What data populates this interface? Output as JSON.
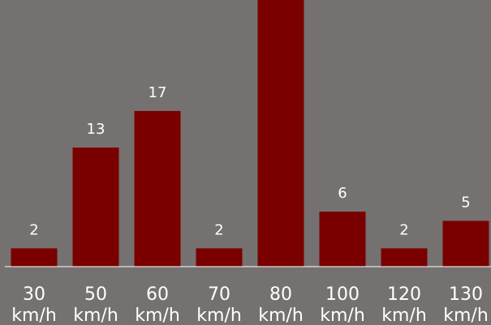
{
  "chart_data": {
    "type": "bar",
    "categories": [
      "30 km/h",
      "50 km/h",
      "60 km/h",
      "70 km/h",
      "80 km/h",
      "100 km/h",
      "120 km/h",
      "130 km/h"
    ],
    "category_lines": [
      [
        "30",
        "km/h"
      ],
      [
        "50",
        "km/h"
      ],
      [
        "60",
        "km/h"
      ],
      [
        "70",
        "km/h"
      ],
      [
        "80",
        "km/h"
      ],
      [
        "100",
        "km/h"
      ],
      [
        "120",
        "km/h"
      ],
      [
        "130",
        "km/h"
      ]
    ],
    "values": [
      2,
      13,
      17,
      2,
      30,
      6,
      2,
      5
    ],
    "data_labels": [
      "2",
      "13",
      "17",
      "2",
      "",
      "6",
      "2",
      "5"
    ],
    "title": "",
    "xlabel": "",
    "ylabel": "",
    "ylim": [
      0,
      30
    ],
    "grid": false,
    "legend": "none",
    "colors": {
      "background": "#757170",
      "bar": "#7a0000",
      "baseline": "#ffffff",
      "text": "#ffffff"
    }
  }
}
